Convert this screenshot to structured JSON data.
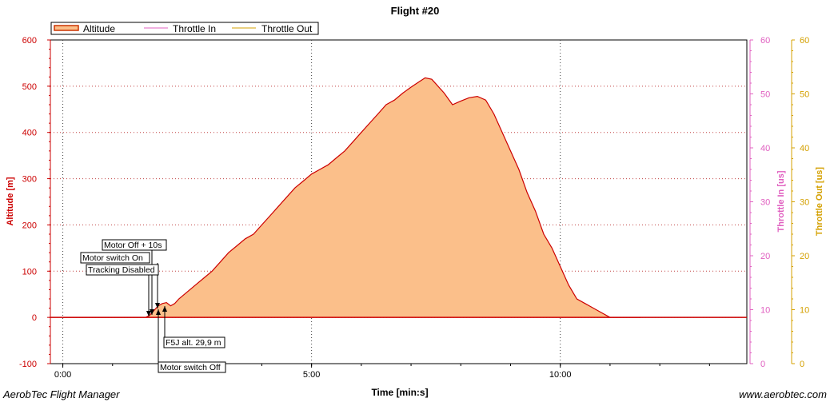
{
  "chart_data": {
    "type": "area",
    "title": "Flight #20",
    "xlabel": "Time [min:s]",
    "x_ticks": [
      "0:00",
      "5:00",
      "10:00"
    ],
    "x_range_sec": [
      -15,
      825
    ],
    "y_axes": [
      {
        "label": "Altitude [m]",
        "range": [
          -100,
          600
        ],
        "ticks": [
          -100,
          0,
          100,
          200,
          300,
          400,
          500,
          600
        ],
        "color": "#cc0000"
      },
      {
        "label": "Throttle In [us]",
        "range": [
          0,
          60
        ],
        "ticks": [
          0,
          10,
          20,
          30,
          40,
          50,
          60
        ],
        "color": "#e060c0"
      },
      {
        "label": "Throttle Out [us]",
        "range": [
          0,
          60
        ],
        "ticks": [
          0,
          10,
          20,
          30,
          40,
          50,
          60
        ],
        "color": "#d4a000"
      }
    ],
    "legend": {
      "placement": "top-left",
      "entries": [
        {
          "name": "Altitude",
          "color": "#cc3300"
        },
        {
          "name": "Throttle In",
          "color": "#e060c0"
        },
        {
          "name": "Throttle Out",
          "color": "#d4a000"
        }
      ]
    },
    "series": [
      {
        "name": "Altitude",
        "fill": "#fbbf8a",
        "line": "#cc0000",
        "x_sec": [
          0,
          100,
          105,
          110,
          115,
          120,
          125,
          130,
          135,
          140,
          150,
          160,
          170,
          180,
          190,
          200,
          210,
          220,
          230,
          240,
          250,
          260,
          270,
          280,
          290,
          300,
          310,
          320,
          330,
          340,
          350,
          360,
          370,
          380,
          390,
          400,
          410,
          420,
          430,
          437,
          445,
          460,
          470,
          480,
          490,
          500,
          510,
          520,
          530,
          540,
          550,
          560,
          570,
          580,
          590,
          600,
          610,
          620,
          630,
          640,
          650,
          660,
          670,
          680,
          690,
          697
        ],
        "y_m": [
          0,
          0,
          5,
          15,
          25,
          30,
          32,
          25,
          30,
          40,
          55,
          70,
          85,
          100,
          120,
          140,
          155,
          170,
          180,
          200,
          220,
          240,
          260,
          280,
          295,
          310,
          320,
          330,
          345,
          360,
          380,
          400,
          420,
          440,
          460,
          470,
          485,
          498,
          510,
          518,
          515,
          485,
          460,
          468,
          475,
          478,
          470,
          440,
          400,
          360,
          320,
          270,
          230,
          180,
          150,
          110,
          70,
          40,
          30,
          20,
          10,
          0,
          0,
          0,
          0,
          0
        ]
      },
      {
        "name": "Throttle In",
        "values": []
      },
      {
        "name": "Throttle Out",
        "values": []
      }
    ],
    "annotations": [
      {
        "text": "Motor Off + 10s",
        "x_sec": 118
      },
      {
        "text": "Motor switch On",
        "x_sec": 111
      },
      {
        "text": "Tracking Disabled",
        "x_sec": 106
      },
      {
        "text": "F5J alt. 29,9 m",
        "x_sec": 120
      },
      {
        "text": "Motor switch Off",
        "x_sec": 113
      }
    ],
    "grid": true
  },
  "footer": {
    "left": "AerobTec Flight Manager",
    "right": "www.aerobtec.com"
  }
}
